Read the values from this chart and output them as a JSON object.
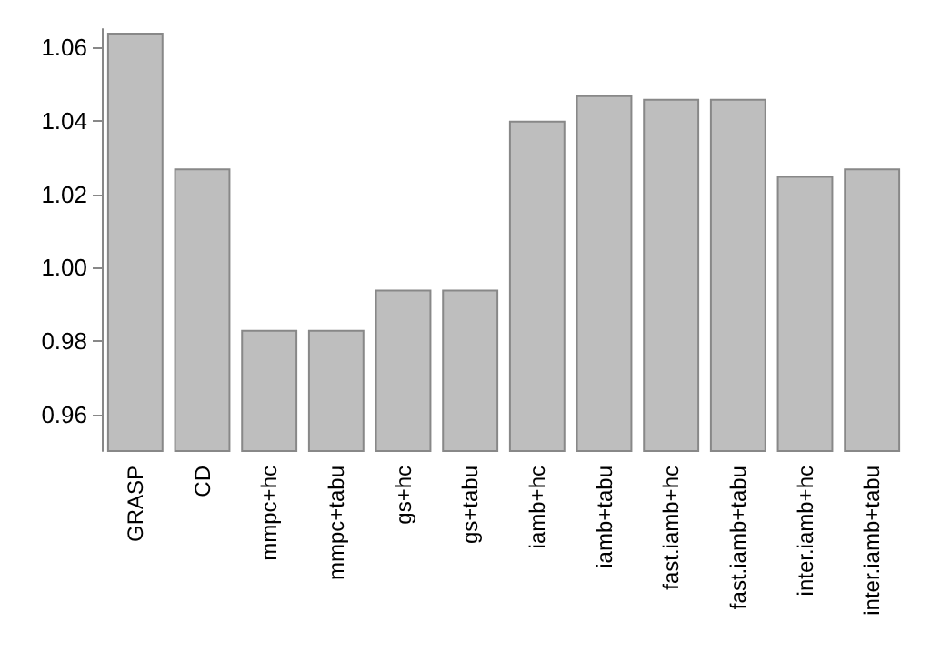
{
  "chart_data": {
    "type": "bar",
    "categories": [
      "GRASP",
      "CD",
      "mmpc+hc",
      "mmpc+tabu",
      "gs+hc",
      "gs+tabu",
      "iamb+hc",
      "iamb+tabu",
      "fast.iamb+hc",
      "fast.iamb+tabu",
      "inter.iamb+hc",
      "inter.iamb+tabu"
    ],
    "values": [
      1.064,
      1.027,
      0.983,
      0.983,
      0.994,
      0.994,
      1.04,
      1.047,
      1.046,
      1.046,
      1.025,
      1.027
    ],
    "color": "#bebebe",
    "ylim": [
      0.95,
      1.065
    ],
    "yticks": [
      0.96,
      0.98,
      {
        "value": 1,
        "label": "1.00"
      },
      1.02,
      1.04,
      1.06
    ],
    "grid": false
  }
}
